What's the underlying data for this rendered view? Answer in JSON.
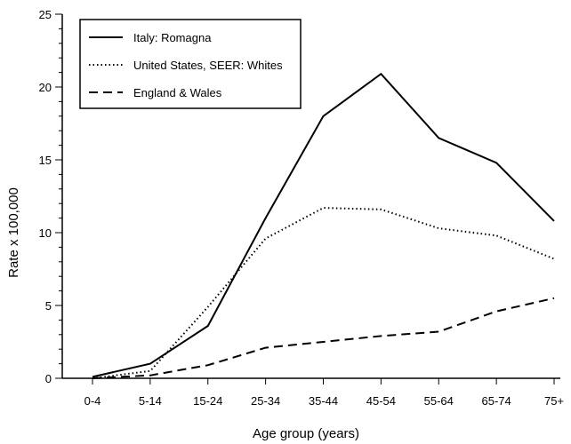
{
  "chart_data": {
    "type": "line",
    "title": "",
    "xlabel": "Age group (years)",
    "ylabel": "Rate x 100,000",
    "categories": [
      "0-4",
      "5-14",
      "15-24",
      "25-34",
      "35-44",
      "45-54",
      "55-64",
      "65-74",
      "75+"
    ],
    "ylim": [
      0,
      25
    ],
    "yticks": [
      0,
      5,
      10,
      15,
      20,
      25
    ],
    "grid": false,
    "legend_position": "top-left",
    "series": [
      {
        "name": "Italy: Romagna",
        "dash": "solid",
        "values": [
          0.1,
          1.0,
          3.6,
          11.0,
          18.0,
          20.9,
          16.5,
          14.8,
          10.8
        ]
      },
      {
        "name": "United States, SEER: Whites",
        "dash": "dotted",
        "values": [
          0.0,
          0.5,
          4.9,
          9.6,
          11.7,
          11.6,
          10.3,
          9.8,
          8.2
        ]
      },
      {
        "name": "England & Wales",
        "dash": "dashed",
        "values": [
          0.0,
          0.2,
          0.9,
          2.1,
          2.5,
          2.9,
          3.2,
          4.6,
          5.5
        ]
      }
    ]
  }
}
